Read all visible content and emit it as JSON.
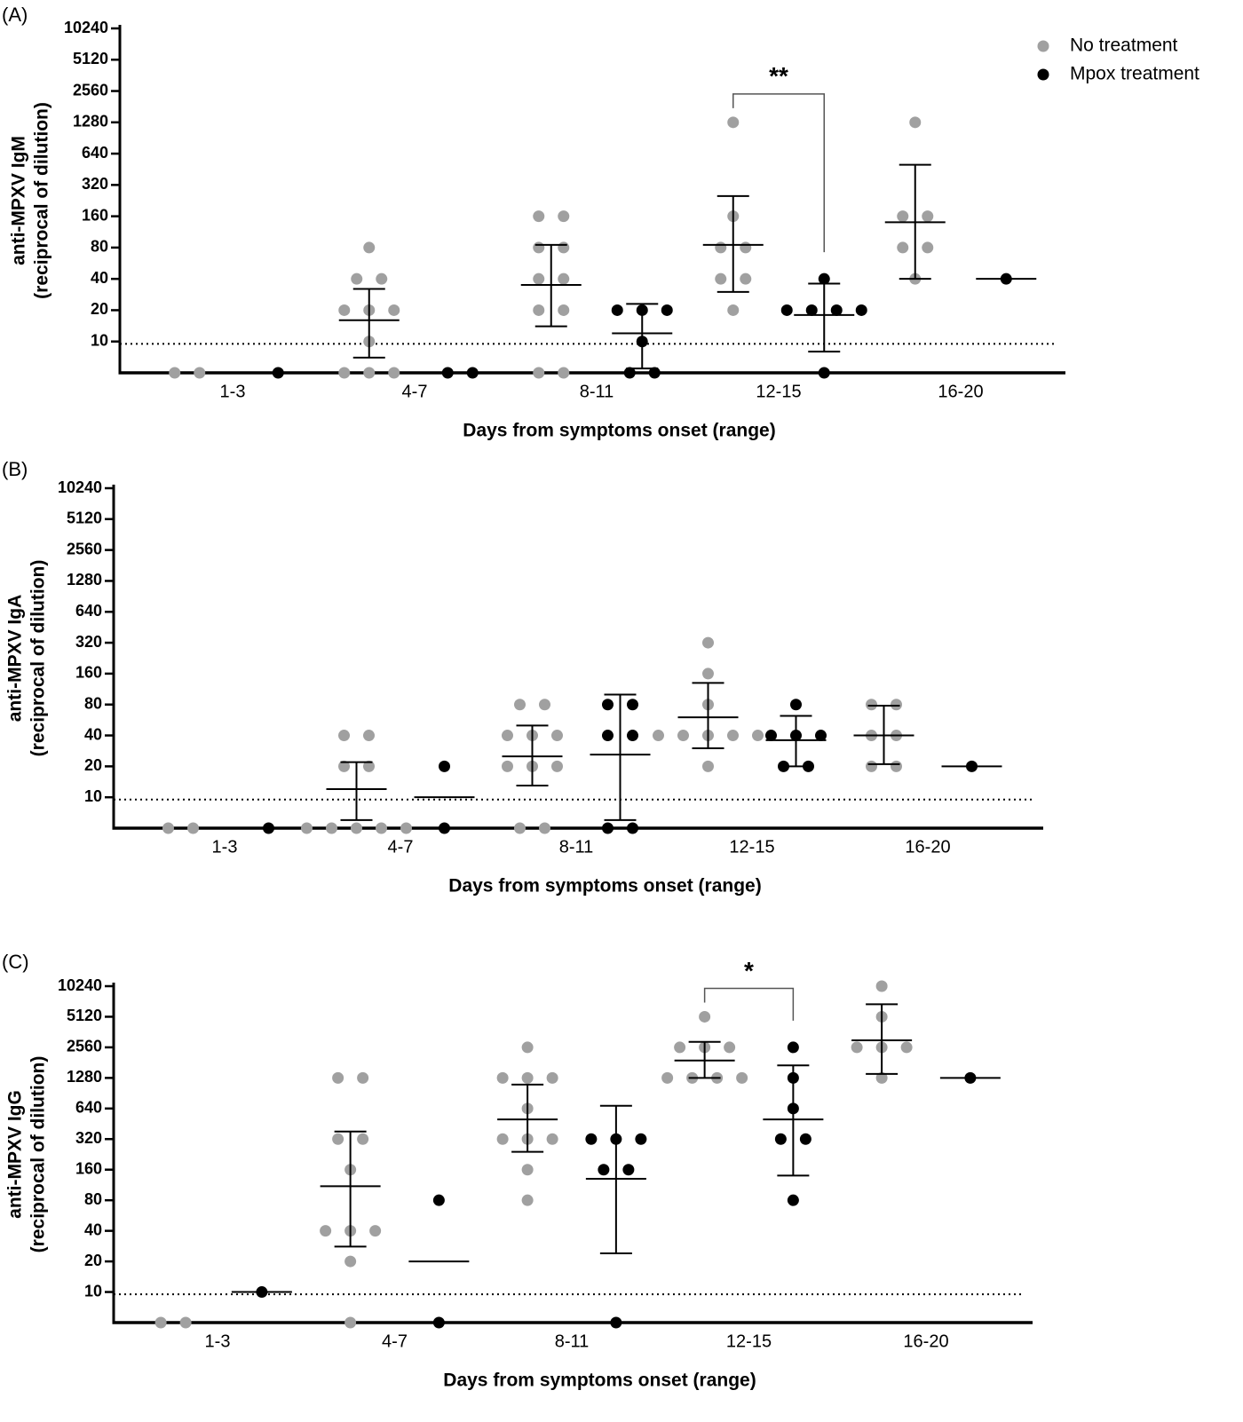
{
  "chart_data": [
    {
      "type": "dot",
      "panel": "(A)",
      "ylabel": [
        "anti-MPXV IgM",
        "(reciprocal of dilution)"
      ],
      "xlabel": "Days from symptoms onset (range)",
      "log_scale": true,
      "ylim": [
        5,
        10240
      ],
      "yticks": [
        10,
        20,
        40,
        80,
        160,
        320,
        640,
        1280,
        2560,
        5120,
        10240
      ],
      "cutoff": 9.5,
      "legend": "upper right",
      "categories": [
        "1-3",
        "4-7",
        "8-11",
        "12-15",
        "16-20"
      ],
      "series": [
        {
          "name": "No treatment",
          "color": "#a0a0a0",
          "values": [
            [
              5,
              5
            ],
            [
              80,
              40,
              40,
              20,
              20,
              20,
              10,
              5,
              5,
              5
            ],
            [
              160,
              160,
              80,
              80,
              40,
              40,
              20,
              20,
              5,
              5
            ],
            [
              1280,
              160,
              80,
              80,
              40,
              40,
              20
            ],
            [
              1280,
              160,
              160,
              80,
              80,
              40
            ]
          ],
          "mean": [
            null,
            16,
            35,
            85,
            140
          ],
          "lower": [
            null,
            7,
            14,
            30,
            40
          ],
          "upper": [
            null,
            32,
            85,
            250,
            500
          ]
        },
        {
          "name": "Mpox treatment",
          "color": "#000000",
          "values": [
            [
              5
            ],
            [
              5,
              5
            ],
            [
              20,
              20,
              20,
              10,
              5,
              5
            ],
            [
              40,
              20,
              20,
              20,
              20,
              5
            ],
            [
              40
            ]
          ],
          "mean": [
            null,
            null,
            12,
            18,
            40
          ],
          "lower": [
            null,
            null,
            5.5,
            8,
            null
          ],
          "upper": [
            null,
            null,
            23,
            36,
            null
          ]
        }
      ],
      "significance": {
        "category": 3,
        "label": "**"
      }
    },
    {
      "type": "dot",
      "panel": "(B)",
      "ylabel": [
        "anti-MPXV IgA",
        "(reciprocal of dilution)"
      ],
      "xlabel": "Days from symptoms onset (range)",
      "log_scale": true,
      "ylim": [
        5,
        10240
      ],
      "yticks": [
        10,
        20,
        40,
        80,
        160,
        320,
        640,
        1280,
        2560,
        5120,
        10240
      ],
      "cutoff": 9.5,
      "categories": [
        "1-3",
        "4-7",
        "8-11",
        "12-15",
        "16-20"
      ],
      "series": [
        {
          "color": "#a0a0a0",
          "values": [
            [
              5,
              5
            ],
            [
              40,
              40,
              20,
              20,
              5,
              5,
              5,
              5,
              5
            ],
            [
              80,
              80,
              40,
              40,
              40,
              20,
              20,
              20,
              5,
              5
            ],
            [
              320,
              160,
              80,
              40,
              40,
              40,
              40,
              40,
              20
            ],
            [
              80,
              80,
              40,
              40,
              20,
              20
            ]
          ],
          "mean": [
            null,
            12,
            25,
            60,
            40
          ],
          "lower": [
            null,
            6,
            13,
            30,
            21
          ],
          "upper": [
            null,
            22,
            50,
            130,
            78
          ]
        },
        {
          "color": "#000000",
          "values": [
            [
              5
            ],
            [
              20,
              5
            ],
            [
              80,
              80,
              40,
              40,
              5,
              5
            ],
            [
              80,
              40,
              40,
              40,
              20,
              20
            ],
            [
              20
            ]
          ],
          "mean": [
            null,
            10,
            26,
            36,
            20
          ],
          "lower": [
            null,
            null,
            6,
            20,
            null
          ],
          "upper": [
            null,
            null,
            100,
            62,
            null
          ]
        }
      ]
    },
    {
      "type": "dot",
      "panel": "(C)",
      "ylabel": [
        "anti-MPXV IgG",
        "(reciprocal of dilution)"
      ],
      "xlabel": "Days from symptoms onset (range)",
      "log_scale": true,
      "ylim": [
        5,
        10240
      ],
      "yticks": [
        10,
        20,
        40,
        80,
        160,
        320,
        640,
        1280,
        2560,
        5120,
        10240
      ],
      "cutoff": 9.5,
      "categories": [
        "1-3",
        "4-7",
        "8-11",
        "12-15",
        "16-20"
      ],
      "series": [
        {
          "color": "#a0a0a0",
          "values": [
            [
              5,
              5
            ],
            [
              1280,
              1280,
              320,
              320,
              160,
              40,
              40,
              40,
              20,
              5
            ],
            [
              2560,
              1280,
              1280,
              1280,
              640,
              320,
              320,
              320,
              160,
              80
            ],
            [
              5120,
              2560,
              2560,
              2560,
              1280,
              1280,
              1280,
              1280
            ],
            [
              10240,
              5120,
              2560,
              2560,
              2560,
              1280
            ]
          ],
          "mean": [
            null,
            110,
            500,
            1900,
            3000
          ],
          "lower": [
            null,
            28,
            240,
            1280,
            1400
          ],
          "upper": [
            null,
            380,
            1100,
            2900,
            6800
          ]
        },
        {
          "color": "#000000",
          "values": [
            [
              10
            ],
            [
              80,
              5
            ],
            [
              320,
              320,
              320,
              160,
              160,
              5
            ],
            [
              2560,
              1280,
              640,
              320,
              320,
              80
            ],
            [
              1280
            ]
          ],
          "mean": [
            10,
            20,
            130,
            500,
            1280
          ],
          "lower": [
            null,
            null,
            24,
            140,
            null
          ],
          "upper": [
            null,
            null,
            680,
            1700,
            null
          ]
        }
      ],
      "significance": {
        "category": 3,
        "label": "*"
      }
    }
  ]
}
